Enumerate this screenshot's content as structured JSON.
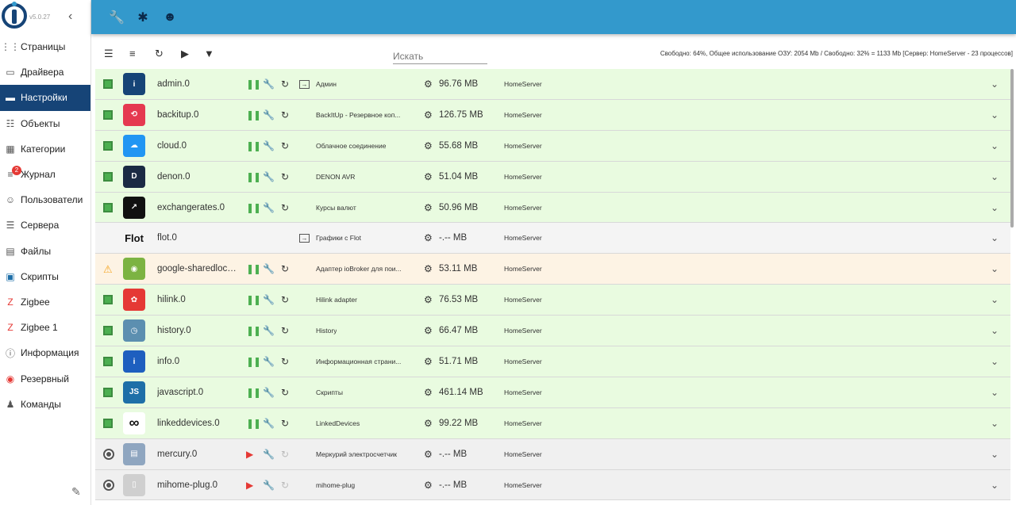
{
  "app": {
    "version": "v5.0.27"
  },
  "sidebar": {
    "items": [
      {
        "label": "Страницы",
        "icon": "grid-icon"
      },
      {
        "label": "Драйвера",
        "icon": "store-icon"
      },
      {
        "label": "Настройки",
        "icon": "settings-panel-icon",
        "active": true
      },
      {
        "label": "Объекты",
        "icon": "list-icon"
      },
      {
        "label": "Категории",
        "icon": "category-icon"
      },
      {
        "label": "Журнал",
        "icon": "log-icon",
        "badge": "2"
      },
      {
        "label": "Пользователи",
        "icon": "user-icon"
      },
      {
        "label": "Сервера",
        "icon": "server-icon"
      },
      {
        "label": "Файлы",
        "icon": "files-icon"
      },
      {
        "label": "Скрипты",
        "icon": "scripts-icon"
      },
      {
        "label": "Zigbee",
        "icon": "zigbee-icon"
      },
      {
        "label": "Zigbee 1",
        "icon": "zigbee-icon"
      },
      {
        "label": "Информация",
        "icon": "info-icon"
      },
      {
        "label": "Резервный",
        "icon": "backup-icon"
      },
      {
        "label": "Команды",
        "icon": "commands-icon"
      }
    ]
  },
  "toolbar": {
    "search_placeholder": "Искать",
    "stats": "Свободно: 64%, Общее использование ОЗУ: 2054 Mb / Свободно: 32% = 1133 Mb [Сервер: HomeServer - 23 процессов]"
  },
  "colors": {
    "accent": "#3399cc",
    "active": "#164477",
    "ok_row": "#e9fbe0",
    "warn_row": "#fdf3e4"
  },
  "instances": [
    {
      "name": "admin.0",
      "title": "Админ",
      "mem": "96.76 MB",
      "host": "HomeServer",
      "state": "ok",
      "icon_color": "#164477",
      "icon_text": "i",
      "link": true,
      "running": true
    },
    {
      "name": "backitup.0",
      "title": "BackItUp - Резервное коп...",
      "mem": "126.75 MB",
      "host": "HomeServer",
      "state": "ok",
      "icon_color": "#e53950",
      "icon_text": "⟲",
      "link": false,
      "running": true
    },
    {
      "name": "cloud.0",
      "title": "Облачное соединение",
      "mem": "55.68 MB",
      "host": "HomeServer",
      "state": "ok",
      "icon_color": "#2196f3",
      "icon_text": "☁",
      "link": false,
      "running": true
    },
    {
      "name": "denon.0",
      "title": "DENON AVR",
      "mem": "51.04 MB",
      "host": "HomeServer",
      "state": "ok",
      "icon_color": "#1b2a44",
      "icon_text": "D",
      "link": false,
      "running": true
    },
    {
      "name": "exchangerates.0",
      "title": "Курсы валют",
      "mem": "50.96 MB",
      "host": "HomeServer",
      "state": "ok",
      "icon_color": "#111111",
      "icon_text": "↗",
      "link": false,
      "running": true
    },
    {
      "name": "flot.0",
      "title": "Графики с Flot",
      "mem": "-.-- MB",
      "host": "HomeServer",
      "state": "plain",
      "icon_color": "#f4f4f4",
      "icon_text": "Flot",
      "link": true,
      "running": null
    },
    {
      "name": "google-sharedlocat...",
      "title": "Адаптер ioBroker для пои...",
      "mem": "53.11 MB",
      "host": "HomeServer",
      "state": "warn",
      "icon_color": "#7cb342",
      "icon_text": "◉",
      "link": false,
      "running": true
    },
    {
      "name": "hilink.0",
      "title": "Hilink adapter",
      "mem": "76.53 MB",
      "host": "HomeServer",
      "state": "ok",
      "icon_color": "#e53935",
      "icon_text": "✿",
      "link": false,
      "running": true
    },
    {
      "name": "history.0",
      "title": "History",
      "mem": "66.47 MB",
      "host": "HomeServer",
      "state": "ok",
      "icon_color": "#5c8fb0",
      "icon_text": "◷",
      "link": false,
      "running": true
    },
    {
      "name": "info.0",
      "title": "Информационная страни...",
      "mem": "51.71 MB",
      "host": "HomeServer",
      "state": "ok",
      "icon_color": "#1e5fbf",
      "icon_text": "i",
      "link": false,
      "running": true
    },
    {
      "name": "javascript.0",
      "title": "Скрипты",
      "mem": "461.14 MB",
      "host": "HomeServer",
      "state": "ok",
      "icon_color": "#1e6fa8",
      "icon_text": "JS",
      "link": false,
      "running": true
    },
    {
      "name": "linkeddevices.0",
      "title": "LinkedDevices",
      "mem": "99.22 MB",
      "host": "HomeServer",
      "state": "ok",
      "icon_color": "#ffffff",
      "icon_text": "∞",
      "link": false,
      "running": true
    },
    {
      "name": "mercury.0",
      "title": "Меркурий электросчетчик",
      "mem": "-.-- MB",
      "host": "HomeServer",
      "state": "off",
      "icon_color": "#8fa6c0",
      "icon_text": "▤",
      "link": false,
      "running": false
    },
    {
      "name": "mihome-plug.0",
      "title": "mihome-plug",
      "mem": "-.-- MB",
      "host": "HomeServer",
      "state": "off",
      "icon_color": "#cfcfcf",
      "icon_text": "▯",
      "link": false,
      "running": false
    }
  ]
}
